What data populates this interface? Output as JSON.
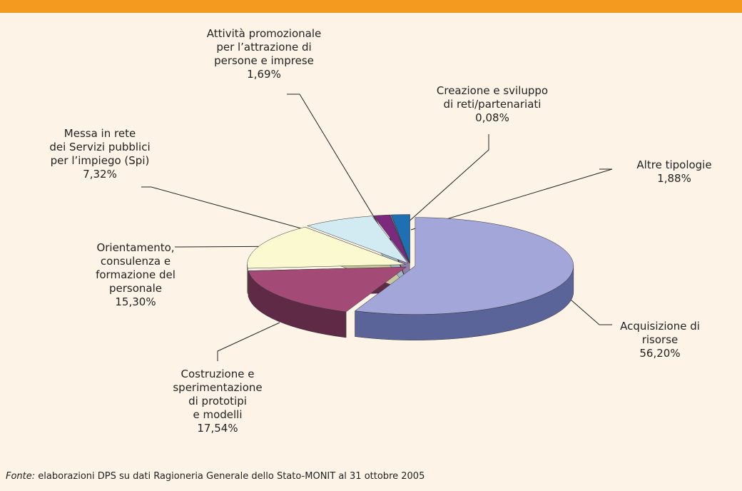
{
  "chart_data": {
    "type": "pie",
    "categories": [
      "Acquisizione di\nrisorse",
      "Costruzione e\nsperimentazione\ndi prototipi\ne modelli",
      "Orientamento,\nconsulenza e\nformazione del\npersonale",
      "Messa in rete\ndei Servizi pubblici\nper l’impiego (Spi)",
      "Attività promozionale\nper l’attrazione di\npersone e imprese",
      "Creazione e sviluppo\ndi reti/partenariati",
      "Altre tipologie"
    ],
    "values": [
      56.2,
      17.54,
      15.3,
      7.32,
      1.69,
      0.08,
      1.88
    ],
    "value_labels": [
      "56,20%",
      "17,54%",
      "15,30%",
      "7,32%",
      "1,69%",
      "0,08%",
      "1,88%"
    ],
    "colors": [
      "#a3a6d8",
      "#a34a76",
      "#fbf9cf",
      "#d2ebf2",
      "#7b2a7e",
      "#c9b8e8",
      "#1f6fb3"
    ],
    "side_colors": [
      "#5b6498",
      "#5f2a46",
      "#c9c79c",
      "#9fb8bf",
      "#4a1a4c",
      "#8d7fa8",
      "#134a78"
    ],
    "source_label": "Fonte:",
    "source": "elaborazioni DPS su dati Ragioneria Generale dello Stato-MONIT al 31 ottobre 2005"
  }
}
